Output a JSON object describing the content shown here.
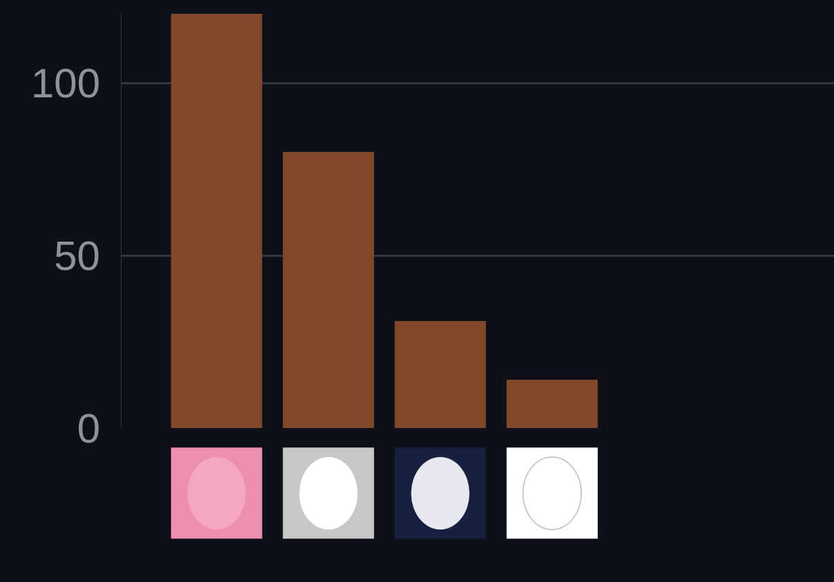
{
  "chart_data": {
    "type": "bar",
    "categories": [
      null,
      null,
      null,
      null
    ],
    "values": [
      120,
      80,
      31,
      14
    ],
    "color": "#81472a",
    "ylim": [
      0,
      120
    ],
    "yticks": [
      0,
      50,
      100
    ],
    "grid": true,
    "tick_labels": "y"
  }
}
